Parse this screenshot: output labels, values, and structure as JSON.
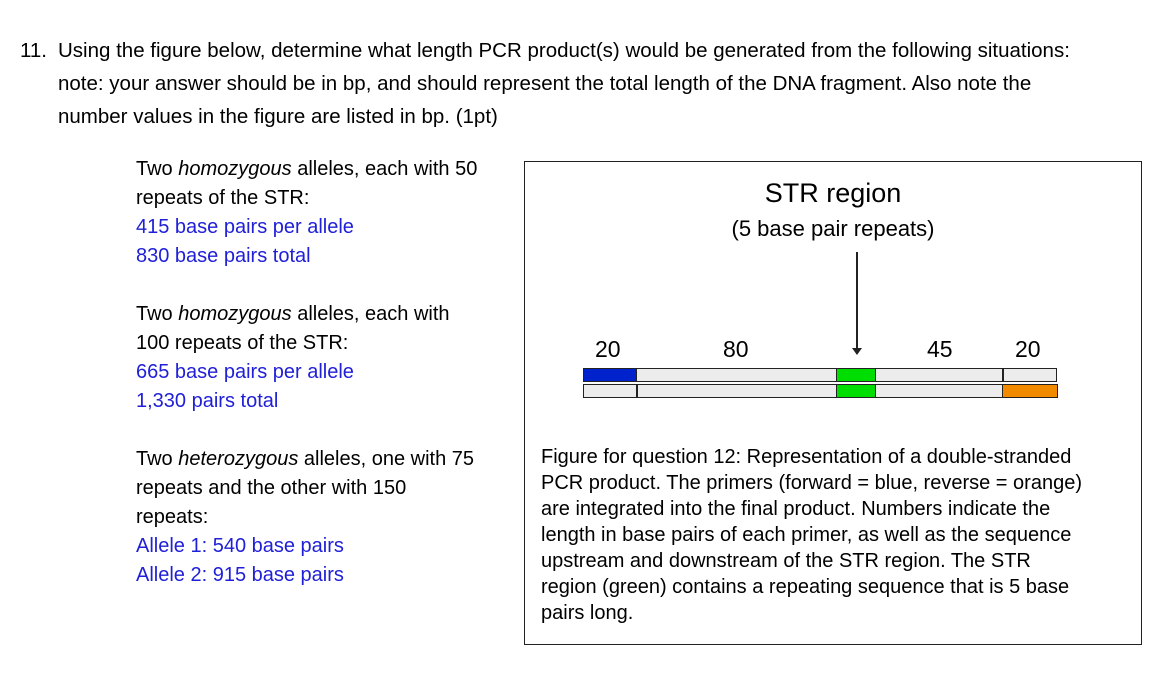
{
  "question": {
    "number": "11.",
    "lines": [
      "Using the figure below, determine what length PCR product(s) would be generated from the following situations:",
      "note: your answer should be in bp, and should represent the total length of the DNA fragment. Also note the",
      "number values in the figure are listed in bp. (1pt)"
    ]
  },
  "answers": [
    {
      "prompt_parts": [
        "Two ",
        "homozygous",
        " alleles, each with 50"
      ],
      "prompt_line2": "repeats of the STR:",
      "prompt_line3": "",
      "blue_lines": [
        "415 base pairs per allele",
        "830  base pairs total"
      ]
    },
    {
      "prompt_parts": [
        "Two ",
        "homozygous",
        " alleles, each with"
      ],
      "prompt_line2": "100 repeats of the STR:",
      "prompt_line3": "",
      "blue_lines": [
        "665 base pairs per allele",
        "1,330 pairs total"
      ]
    },
    {
      "prompt_parts": [
        "Two ",
        "heterozygous",
        " alleles, one with 75"
      ],
      "prompt_line2": "repeats and the other with 150",
      "prompt_line3": "repeats:",
      "blue_lines": [
        "Allele 1: 540 base pairs",
        "Allele 2: 915 base pairs"
      ]
    }
  ],
  "figure": {
    "title": "STR region",
    "subtitle": "(5 base pair repeats)",
    "labels": [
      "20",
      "80",
      "45",
      "20"
    ],
    "colors": {
      "forward_primer": "#0022cc",
      "str_region": "#00dd00",
      "reverse_primer": "#f28a00",
      "strand": "#ececec"
    },
    "caption_lines": [
      "Figure for question 12: Representation of a double-stranded",
      "PCR product. The primers (forward = blue, reverse = orange)",
      "are integrated into the final product. Numbers indicate the",
      "length in base pairs of each primer, as well as the sequence",
      "upstream and downstream of the STR region. The STR",
      "region (green) contains a repeating sequence that is 5 base",
      "pairs long."
    ]
  }
}
